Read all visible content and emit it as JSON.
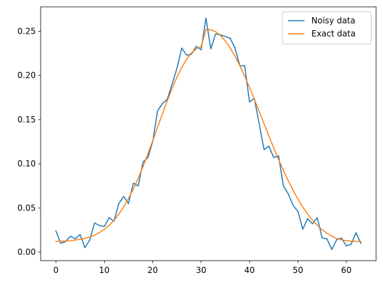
{
  "chart_data": {
    "type": "line",
    "title": "",
    "xlabel": "",
    "ylabel": "",
    "xlim": [
      -3.15,
      66.15
    ],
    "ylim": [
      -0.0096,
      0.2776
    ],
    "grid": false,
    "legend": "top-right",
    "xticks": [
      0,
      10,
      20,
      30,
      40,
      50,
      60
    ],
    "xtick_labels": [
      "0",
      "10",
      "20",
      "30",
      "40",
      "50",
      "60"
    ],
    "yticks": [
      0.0,
      0.05,
      0.1,
      0.15,
      0.2,
      0.25
    ],
    "ytick_labels": [
      "0.00",
      "0.05",
      "0.10",
      "0.15",
      "0.20",
      "0.25"
    ],
    "x": [
      0,
      1,
      2,
      3,
      4,
      5,
      6,
      7,
      8,
      9,
      10,
      11,
      12,
      13,
      14,
      15,
      16,
      17,
      18,
      19,
      20,
      21,
      22,
      23,
      24,
      25,
      26,
      27,
      28,
      29,
      30,
      31,
      32,
      33,
      34,
      35,
      36,
      37,
      38,
      39,
      40,
      41,
      42,
      43,
      44,
      45,
      46,
      47,
      48,
      49,
      50,
      51,
      52,
      53,
      54,
      55,
      56,
      57,
      58,
      59,
      60,
      61,
      62,
      63
    ],
    "series": [
      {
        "name": "Noisy data",
        "color": "#1f77b4",
        "values": [
          0.024,
          0.01,
          0.012,
          0.018,
          0.015,
          0.02,
          0.005,
          0.014,
          0.033,
          0.03,
          0.029,
          0.039,
          0.035,
          0.055,
          0.063,
          0.055,
          0.078,
          0.075,
          0.102,
          0.107,
          0.125,
          0.16,
          0.168,
          0.173,
          0.19,
          0.208,
          0.231,
          0.223,
          0.224,
          0.233,
          0.229,
          0.265,
          0.23,
          0.247,
          0.246,
          0.244,
          0.242,
          0.231,
          0.211,
          0.211,
          0.17,
          0.174,
          0.145,
          0.116,
          0.12,
          0.107,
          0.109,
          0.075,
          0.066,
          0.053,
          0.046,
          0.026,
          0.038,
          0.032,
          0.039,
          0.016,
          0.015,
          0.003,
          0.014,
          0.016,
          0.007,
          0.009,
          0.022,
          0.01
        ]
      },
      {
        "name": "Exact data",
        "color": "#ff7f0e",
        "values": [
          0.0122,
          0.0124,
          0.0126,
          0.013,
          0.0136,
          0.0144,
          0.0156,
          0.0172,
          0.0193,
          0.0221,
          0.0257,
          0.0303,
          0.036,
          0.0429,
          0.0511,
          0.0606,
          0.0715,
          0.0836,
          0.0969,
          0.1111,
          0.126,
          0.1412,
          0.1564,
          0.1712,
          0.1851,
          0.1978,
          0.209,
          0.2183,
          0.2254,
          0.2302,
          0.2326,
          0.252,
          0.2518,
          0.2495,
          0.2452,
          0.2391,
          0.2312,
          0.2218,
          0.211,
          0.1991,
          0.1864,
          0.173,
          0.1593,
          0.1454,
          0.1316,
          0.118,
          0.105,
          0.0925,
          0.0808,
          0.0699,
          0.06,
          0.0511,
          0.0432,
          0.0363,
          0.0304,
          0.0254,
          0.0213,
          0.018,
          0.0155,
          0.014,
          0.013,
          0.0124,
          0.0121,
          0.012
        ]
      }
    ]
  }
}
